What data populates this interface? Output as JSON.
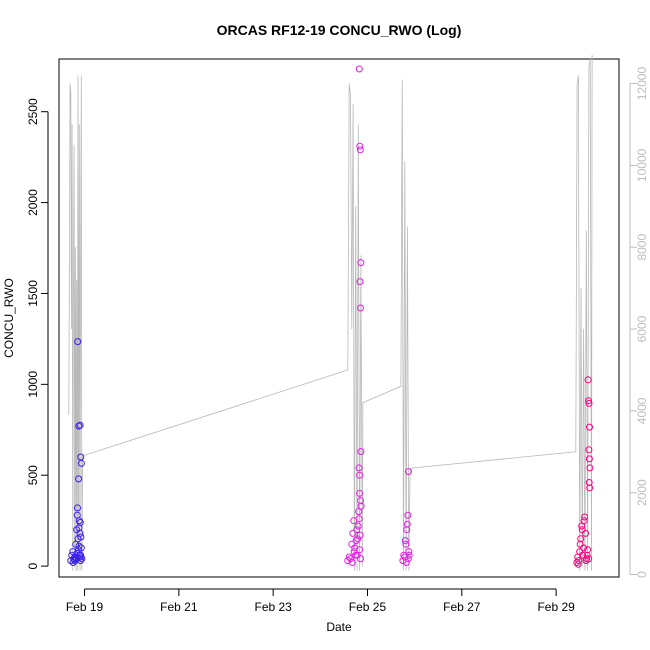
{
  "chart_data": {
    "type": "scatter",
    "title": "ORCAS RF12-19 CONCU_RWO (Log)",
    "xlabel": "Date",
    "ylabel": "CONCU_RWO",
    "x_ticks": [
      "Feb 19",
      "Feb 21",
      "Feb 23",
      "Feb 25",
      "Feb 27",
      "Feb 29"
    ],
    "y_ticks": [
      "0",
      "500",
      "1000",
      "1500",
      "2000",
      "2500"
    ],
    "y2_ticks": [
      "0",
      "2000",
      "4000",
      "6000",
      "8000",
      "10000",
      "12000"
    ],
    "xlim": [
      "2016-02-18T11:00",
      "2016-03-01T08:00"
    ],
    "ylim": [
      -60,
      2790
    ],
    "y2lim": [
      -60,
      12600
    ],
    "grid": false,
    "legend": "none",
    "colors": {
      "flight_start": "#3b1ff5",
      "flight_mid": "#e61ee6",
      "flight_end": "#ff007f",
      "secondary_trace": "#b8b8b8"
    },
    "series": [
      {
        "color": "#3b1ff5",
        "x": [
          "2016-02-18T17:00",
          "2016-02-18T17:30",
          "2016-02-18T18:00",
          "2016-02-18T18:30",
          "2016-02-18T19:00",
          "2016-02-18T19:30",
          "2016-02-18T20:00",
          "2016-02-18T20:20",
          "2016-02-18T20:40",
          "2016-02-18T21:00",
          "2016-02-18T21:20",
          "2016-02-18T21:40",
          "2016-02-18T22:00",
          "2016-02-18T22:20",
          "2016-02-18T22:40",
          "2016-02-18T18:10",
          "2016-02-18T19:10",
          "2016-02-18T20:10",
          "2016-02-18T21:10",
          "2016-02-18T21:50",
          "2016-02-18T22:10",
          "2016-02-18T19:50",
          "2016-02-18T20:50",
          "2016-02-18T21:30",
          "2016-02-18T20:30",
          "2016-02-18T21:05",
          "2016-02-18T21:45",
          "2016-02-18T22:05",
          "2016-02-18T22:25",
          "2016-02-18T20:25",
          "2016-02-18T21:00",
          "2016-02-18T21:15",
          "2016-02-18T21:55",
          "2016-02-18T22:15",
          "2016-02-18T18:40",
          "2016-02-18T19:40"
        ],
        "values": [
          30,
          60,
          80,
          40,
          50,
          120,
          200,
          280,
          150,
          90,
          250,
          180,
          60,
          100,
          40,
          20,
          30,
          70,
          110,
          240,
          160,
          40,
          45,
          60,
          1235,
          770,
          775,
          600,
          565,
          320,
          480,
          210,
          30,
          50,
          35,
          45
        ]
      },
      {
        "color": "#e61ee6",
        "x": [
          "2016-02-24T14:00",
          "2016-02-24T14:40",
          "2016-02-24T15:20",
          "2016-02-24T16:00",
          "2016-02-24T16:30",
          "2016-02-24T17:00",
          "2016-02-24T17:30",
          "2016-02-24T18:00",
          "2016-02-24T18:30",
          "2016-02-24T19:00",
          "2016-02-24T19:30",
          "2016-02-24T20:00",
          "2016-02-24T20:30",
          "2016-02-24T16:15",
          "2016-02-24T17:15",
          "2016-02-24T18:15",
          "2016-02-24T19:15",
          "2016-02-24T19:45",
          "2016-02-24T20:15",
          "2016-02-24T19:50",
          "2016-02-24T20:05",
          "2016-02-24T20:20",
          "2016-02-24T20:35",
          "2016-02-24T20:10",
          "2016-02-24T20:25",
          "2016-02-24T20:40",
          "2016-02-24T19:40",
          "2016-02-24T20:00",
          "2016-02-24T19:55",
          "2016-02-24T20:30",
          "2016-02-24T20:45",
          "2016-02-24T18:45",
          "2016-02-25T18:00",
          "2016-02-25T18:30",
          "2016-02-25T19:00",
          "2016-02-25T19:30",
          "2016-02-25T20:00",
          "2016-02-25T20:30",
          "2016-02-25T21:00",
          "2016-02-25T19:15",
          "2016-02-25T20:15",
          "2016-02-25T19:45",
          "2016-02-25T20:45",
          "2016-02-25T21:15",
          "2016-02-25T20:50"
        ],
        "values": [
          30,
          50,
          40,
          120,
          180,
          250,
          100,
          60,
          200,
          150,
          300,
          90,
          40,
          20,
          80,
          140,
          220,
          260,
          170,
          2735,
          2310,
          2290,
          1670,
          1565,
          1420,
          630,
          540,
          500,
          400,
          360,
          330,
          60,
          30,
          60,
          50,
          120,
          200,
          280,
          80,
          140,
          230,
          20,
          40,
          60,
          520
        ]
      },
      {
        "color": "#ff007f",
        "x": [
          "2016-02-29T10:30",
          "2016-02-29T11:00",
          "2016-02-29T11:30",
          "2016-02-29T12:00",
          "2016-02-29T12:30",
          "2016-02-29T13:00",
          "2016-02-29T13:30",
          "2016-02-29T14:00",
          "2016-02-29T14:30",
          "2016-02-29T15:00",
          "2016-02-29T15:30",
          "2016-02-29T16:00",
          "2016-02-29T11:15",
          "2016-02-29T12:15",
          "2016-02-29T13:15",
          "2016-02-29T14:15",
          "2016-02-29T15:15",
          "2016-02-29T15:45",
          "2016-02-29T16:15",
          "2016-02-29T16:30",
          "2016-02-29T16:45",
          "2016-02-29T17:00",
          "2016-02-29T16:40",
          "2016-02-29T16:55",
          "2016-02-29T17:10",
          "2016-02-29T16:50",
          "2016-02-29T17:05",
          "2016-02-29T16:35"
        ],
        "values": [
          20,
          50,
          30,
          80,
          150,
          220,
          60,
          100,
          270,
          180,
          40,
          90,
          10,
          120,
          200,
          250,
          30,
          60,
          1025,
          910,
          895,
          765,
          640,
          590,
          540,
          460,
          430,
          40
        ]
      }
    ],
    "secondary_trace": {
      "color": "#b8b8b8",
      "axis": "right",
      "x": [
        "2016-02-18T16:00",
        "2016-02-18T16:40",
        "2016-02-18T17:00",
        "2016-02-18T17:20",
        "2016-02-18T17:40",
        "2016-02-18T18:00",
        "2016-02-18T18:20",
        "2016-02-18T18:40",
        "2016-02-18T19:00",
        "2016-02-18T19:20",
        "2016-02-18T19:40",
        "2016-02-18T20:00",
        "2016-02-18T20:20",
        "2016-02-18T20:40",
        "2016-02-18T21:00",
        "2016-02-18T21:20",
        "2016-02-18T21:40",
        "2016-02-18T22:00",
        "2016-02-18T22:20",
        "2016-02-18T22:40",
        "2016-02-18T23:00",
        "2016-02-24T14:00",
        "2016-02-24T14:40",
        "2016-02-24T15:20",
        "2016-02-24T16:00",
        "2016-02-24T16:40",
        "2016-02-24T17:20",
        "2016-02-24T18:00",
        "2016-02-24T18:40",
        "2016-02-24T19:20",
        "2016-02-24T20:00",
        "2016-02-24T20:40",
        "2016-02-24T21:20",
        "2016-02-24T21:40",
        "2016-02-25T17:00",
        "2016-02-25T17:40",
        "2016-02-25T18:20",
        "2016-02-25T19:00",
        "2016-02-25T19:40",
        "2016-02-25T20:20",
        "2016-02-25T21:00",
        "2016-02-25T21:40",
        "2016-02-29T10:00",
        "2016-02-29T10:40",
        "2016-02-29T11:20",
        "2016-02-29T12:00",
        "2016-02-29T12:40",
        "2016-02-29T13:20",
        "2016-02-29T14:00",
        "2016-02-29T14:40",
        "2016-02-29T15:20",
        "2016-02-29T16:00",
        "2016-02-29T16:40",
        "2016-02-29T17:20",
        "2016-02-29T18:00",
        "2016-02-29T18:20"
      ],
      "values": [
        3900,
        12000,
        11800,
        6000,
        11000,
        100,
        7000,
        10500,
        200,
        8000,
        100,
        7200,
        100,
        12200,
        300,
        11000,
        100,
        7500,
        12200,
        100,
        2900,
        5000,
        12000,
        11700,
        6000,
        11500,
        100,
        9000,
        100,
        11000,
        100,
        7800,
        200,
        4200,
        4600,
        12100,
        100,
        10100,
        100,
        8500,
        100,
        2600,
        3000,
        12000,
        12200,
        100,
        7000,
        200,
        6000,
        100,
        8400,
        100,
        12400,
        12600,
        100,
        12700
      ]
    }
  }
}
